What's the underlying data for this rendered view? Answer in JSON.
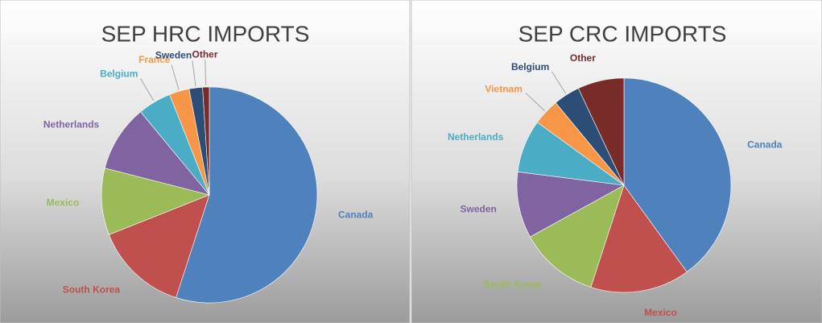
{
  "chart_data": [
    {
      "type": "pie",
      "title": "SEP HRC IMPORTS",
      "categories": [
        "Canada",
        "South Korea",
        "Mexico",
        "Netherlands",
        "Belgium",
        "France",
        "Sweden",
        "Other"
      ],
      "values": [
        55,
        14,
        10,
        10,
        5,
        3,
        2,
        1
      ],
      "colors": [
        "#4f81bd",
        "#c0504d",
        "#9bbb59",
        "#8064a2",
        "#4bacc6",
        "#f79646",
        "#2c4d75",
        "#772c2a"
      ]
    },
    {
      "type": "pie",
      "title": "SEP CRC IMPORTS",
      "categories": [
        "Canada",
        "Mexico",
        "South Korea",
        "Sweden",
        "Netherlands",
        "Vietnam",
        "Belgium",
        "Other"
      ],
      "values": [
        40,
        15,
        12,
        10,
        8,
        4,
        4,
        7
      ],
      "colors": [
        "#4f81bd",
        "#c0504d",
        "#9bbb59",
        "#8064a2",
        "#4bacc6",
        "#f79646",
        "#2c4d75",
        "#772c2a"
      ]
    }
  ]
}
